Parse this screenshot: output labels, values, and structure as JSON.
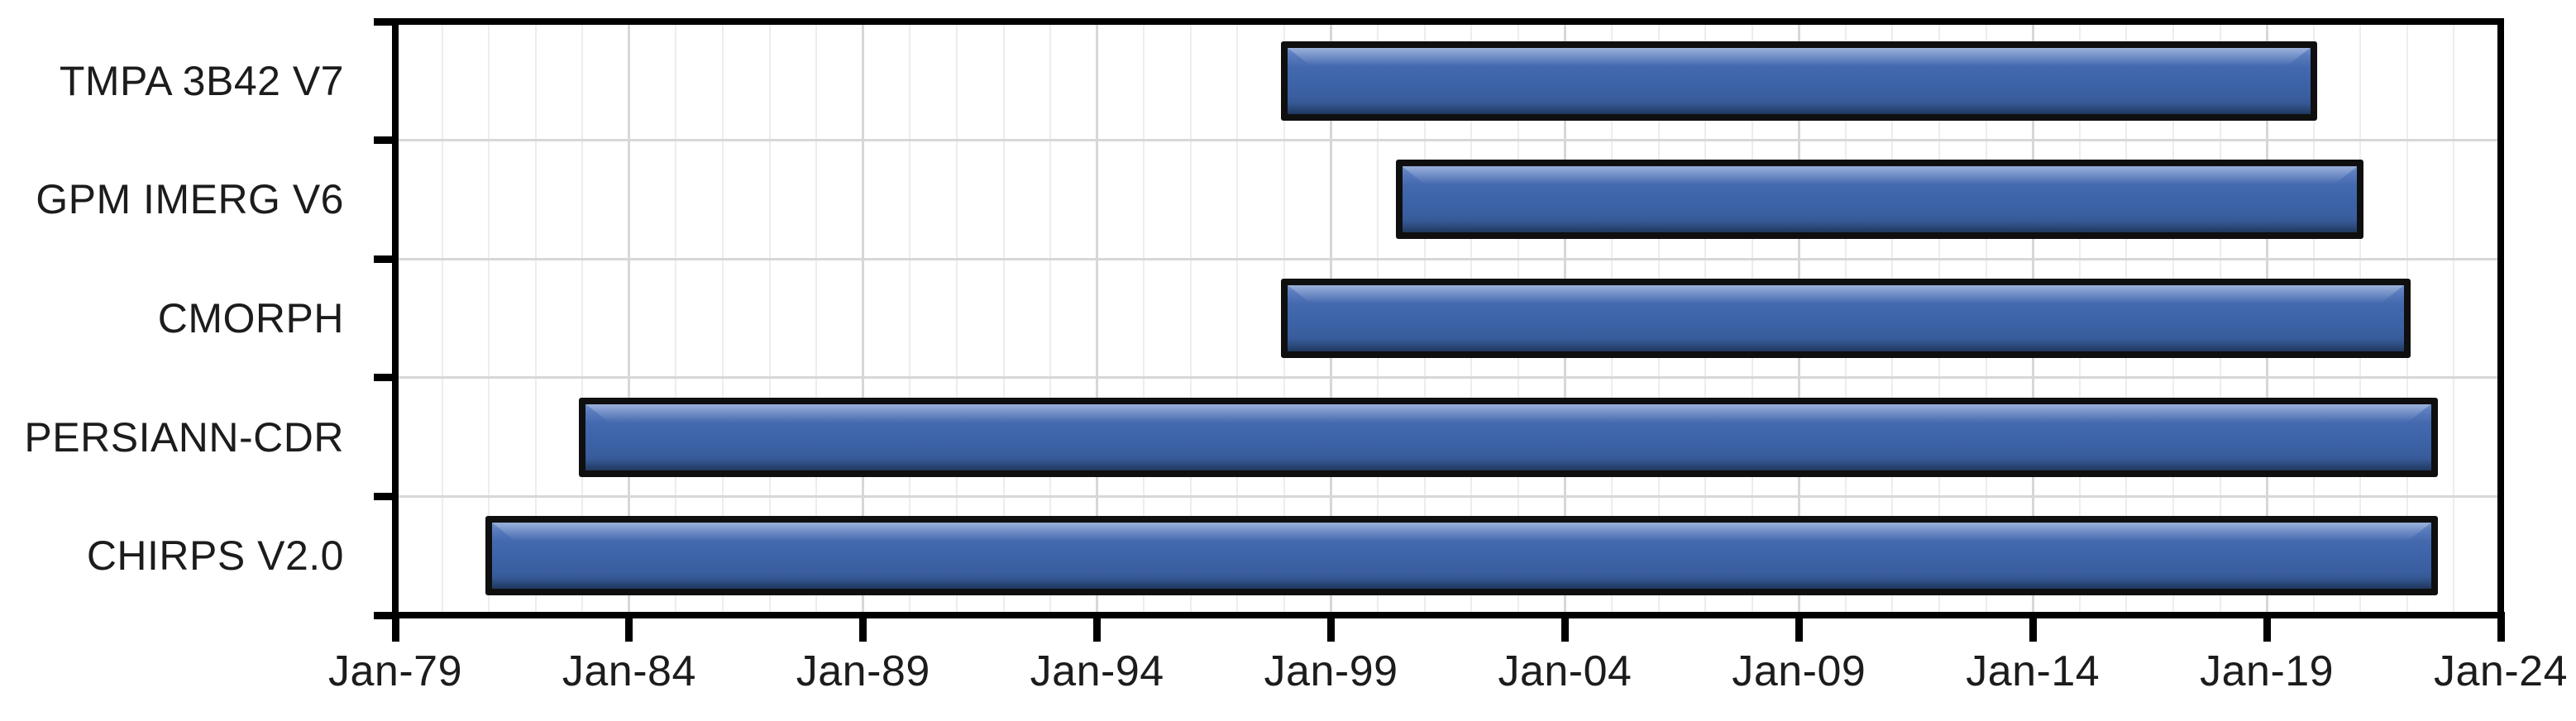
{
  "chart_data": {
    "type": "bar",
    "subtype": "gantt-timeline",
    "title": "",
    "xlabel": "",
    "ylabel": "",
    "grid": "on",
    "legend": "none",
    "orientation": "horizontal",
    "categories": [
      {
        "label": "TMPA 3B42 V7",
        "period_start": "Jan-98",
        "period_end": "Dec-19",
        "start_year": 1998.0,
        "end_year": 2020.0
      },
      {
        "label": "GPM IMERG V6",
        "period_start": "Jun-00",
        "period_end": "Dec-20",
        "start_year": 2000.45,
        "end_year": 2021.0
      },
      {
        "label": "CMORPH",
        "period_start": "Jan-98",
        "period_end": "Dec-21",
        "start_year": 1998.0,
        "end_year": 2022.0
      },
      {
        "label": "PERSIANN-CDR",
        "period_start": "Jan-83",
        "period_end": "Jul-22",
        "start_year": 1983.0,
        "end_year": 2022.58
      },
      {
        "label": "CHIRPS V2.0",
        "period_start": "Jan-81",
        "period_end": "Jul-22",
        "start_year": 1981.0,
        "end_year": 2022.58
      }
    ],
    "x_axis": {
      "min_year": 1979,
      "max_year": 2024,
      "tick_years": [
        1979,
        1984,
        1989,
        1994,
        1999,
        2004,
        2009,
        2014,
        2019,
        2024
      ],
      "tick_labels": [
        "Jan-79",
        "Jan-84",
        "Jan-89",
        "Jan-94",
        "Jan-99",
        "Jan-04",
        "Jan-09",
        "Jan-14",
        "Jan-19",
        "Jan-24"
      ],
      "minor_gridline_interval_years": 1,
      "major_gridline_interval_years": 5
    }
  },
  "style": {
    "background": "#ffffff",
    "axis_color": "#000000",
    "text_color": "#1c1c1c",
    "grid_major_color": "#d7d7d7",
    "grid_minor_color": "#ededed",
    "bar_face_color": "#3d63a8",
    "bar_highlight_color": "#7090ca",
    "bar_shadow_color": "#2b4a7e",
    "bar_border_color": "#0f0f0f"
  }
}
